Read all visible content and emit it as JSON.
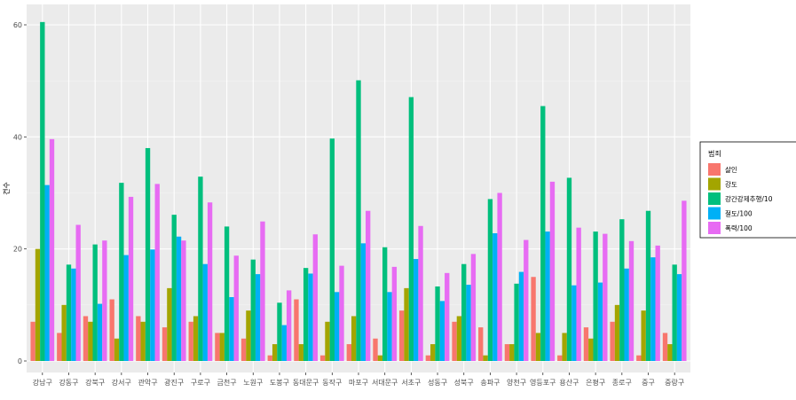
{
  "chart_data": {
    "type": "bar",
    "title": "",
    "xlabel": "",
    "ylabel": "건수",
    "ylim": [
      0,
      62
    ],
    "yticks": [
      0,
      20,
      40,
      60
    ],
    "grid": true,
    "legend_position": "right",
    "legend_title": "범죄",
    "categories": [
      "강남구",
      "강동구",
      "강북구",
      "강서구",
      "관악구",
      "광진구",
      "구로구",
      "금천구",
      "노원구",
      "도봉구",
      "동대문구",
      "동작구",
      "마포구",
      "서대문구",
      "서초구",
      "성동구",
      "성북구",
      "송파구",
      "양천구",
      "영등포구",
      "용산구",
      "은평구",
      "종로구",
      "중구",
      "중랑구"
    ],
    "series": [
      {
        "name": "살인",
        "color": "#F8766D",
        "values": [
          7,
          5,
          8,
          11,
          8,
          6,
          7,
          5,
          4,
          1,
          11,
          1,
          3,
          4,
          9,
          1,
          7,
          6,
          3,
          15,
          1,
          6,
          7,
          1,
          5
        ]
      },
      {
        "name": "강도",
        "color": "#A3A500",
        "values": [
          20,
          10,
          7,
          4,
          7,
          13,
          8,
          5,
          9,
          3,
          3,
          7,
          8,
          1,
          13,
          3,
          8,
          1,
          3,
          5,
          5,
          4,
          10,
          9,
          3
        ]
      },
      {
        "name": "강간강제추행/10",
        "color": "#00BF7D",
        "values": [
          60.5,
          17.2,
          20.8,
          31.8,
          38,
          26.1,
          32.9,
          24,
          18.1,
          10.4,
          16.6,
          39.7,
          50.1,
          20.3,
          47.1,
          13.3,
          17.3,
          28.9,
          13.8,
          45.5,
          32.7,
          23.1,
          25.3,
          26.8,
          17.2
        ]
      },
      {
        "name": "절도/100",
        "color": "#00B0F6",
        "values": [
          31.4,
          16.5,
          10.2,
          18.9,
          19.9,
          22.2,
          17.3,
          11.4,
          15.5,
          6.4,
          15.6,
          12.3,
          21,
          12.3,
          18.2,
          10.7,
          13.6,
          22.8,
          15.9,
          23.1,
          13.5,
          14,
          16.5,
          18.5,
          15.5
        ]
      },
      {
        "name": "폭력/100",
        "color": "#E76BF3",
        "values": [
          39.6,
          24.3,
          21.5,
          29.3,
          31.6,
          21.5,
          28.3,
          18.8,
          24.9,
          12.6,
          22.6,
          17,
          26.8,
          16.8,
          24.1,
          15.7,
          19.1,
          30,
          21.6,
          32,
          23.8,
          22.7,
          21.4,
          20.6,
          28.6
        ]
      }
    ]
  }
}
